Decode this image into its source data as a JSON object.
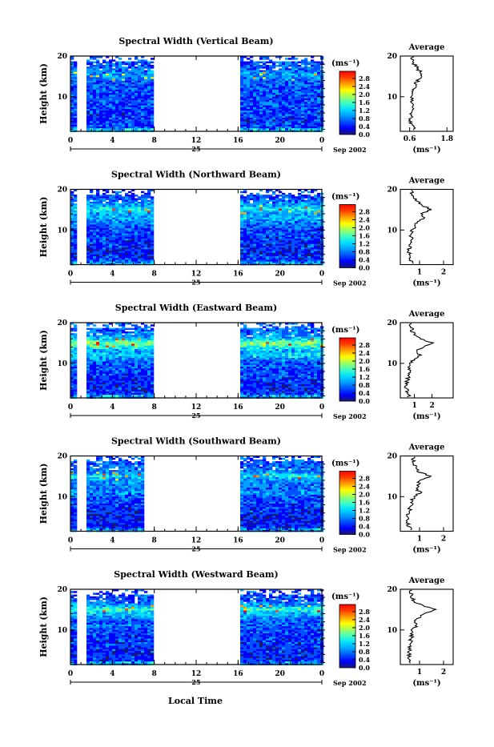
{
  "figure": {
    "xlabel": "Local Time",
    "date_left": "25",
    "date_right": "Sep 2002",
    "cbar_unit": "(ms⁻¹)",
    "profile_title": "Average",
    "profile_xlabel": "(ms⁻¹)",
    "ylabel": "Height (km)"
  },
  "chart_data": [
    {
      "type": "heatmap",
      "title": "Spectral Width (Vertical Beam)",
      "ylabel": "Height (km)",
      "xlabel": "Local Time",
      "xlim": [
        0,
        24
      ],
      "ylim": [
        1.5,
        20
      ],
      "x_ticks": [
        "0",
        "4",
        "8",
        "12",
        "16",
        "20",
        "0"
      ],
      "y_ticks": [
        "10",
        "20"
      ],
      "data_gaps_hours": [
        [
          1.5,
          1.5
        ],
        [
          7.8,
          16.2
        ]
      ],
      "colorbar": {
        "unit": "(ms⁻¹)",
        "range": [
          0,
          3.0
        ],
        "ticks": [
          "0.0",
          "0.4",
          "0.8",
          "1.2",
          "1.6",
          "2.0",
          "2.4",
          "2.8"
        ]
      },
      "average_profile": {
        "title": "Average",
        "xlabel": "(ms⁻¹)",
        "x_ticks": [
          "0.6",
          "1.8"
        ],
        "xlim": [
          0.3,
          2.0
        ],
        "height_km": [
          2,
          4,
          6,
          8,
          10,
          12,
          14,
          15,
          16,
          17,
          18,
          19.5
        ],
        "width_ms": [
          0.75,
          0.62,
          0.65,
          0.7,
          0.65,
          0.75,
          0.85,
          1.05,
          0.95,
          0.85,
          0.75,
          0.7
        ]
      }
    },
    {
      "type": "heatmap",
      "title": "Spectral Width (Northward Beam)",
      "ylabel": "Height (km)",
      "xlabel": "Local Time",
      "xlim": [
        0,
        24
      ],
      "ylim": [
        1.5,
        20
      ],
      "x_ticks": [
        "0",
        "4",
        "8",
        "12",
        "16",
        "20",
        "0"
      ],
      "y_ticks": [
        "10",
        "20"
      ],
      "data_gaps_hours": [
        [
          1.5,
          1.5
        ],
        [
          7.8,
          16.2
        ]
      ],
      "colorbar": {
        "unit": "(ms⁻¹)",
        "range": [
          0,
          3.0
        ],
        "ticks": [
          "0.0",
          "0.4",
          "0.8",
          "1.2",
          "1.6",
          "2.0",
          "2.4",
          "2.8"
        ]
      },
      "average_profile": {
        "title": "Average",
        "xlabel": "(ms⁻¹)",
        "x_ticks": [
          "1",
          "2"
        ],
        "xlim": [
          0.2,
          2.4
        ],
        "height_km": [
          2,
          4,
          6,
          8,
          10,
          12,
          13,
          14,
          15,
          16,
          17,
          18,
          19.5
        ],
        "width_ms": [
          0.7,
          0.55,
          0.6,
          0.65,
          0.7,
          0.95,
          1.25,
          1.05,
          1.5,
          1.15,
          0.9,
          0.75,
          0.65
        ]
      }
    },
    {
      "type": "heatmap",
      "title": "Spectral Width (Eastward Beam)",
      "ylabel": "Height (km)",
      "xlabel": "Local Time",
      "xlim": [
        0,
        24
      ],
      "ylim": [
        1.5,
        20
      ],
      "x_ticks": [
        "0",
        "4",
        "8",
        "12",
        "16",
        "20",
        "0"
      ],
      "y_ticks": [
        "10",
        "20"
      ],
      "data_gaps_hours": [
        [
          1.5,
          1.5
        ],
        [
          7.8,
          16.2
        ]
      ],
      "colorbar": {
        "unit": "(ms⁻¹)",
        "range": [
          0,
          3.0
        ],
        "ticks": [
          "0.0",
          "0.4",
          "0.8",
          "1.2",
          "1.6",
          "2.0",
          "2.4",
          "2.8"
        ]
      },
      "average_profile": {
        "title": "Average",
        "xlabel": "(ms⁻¹)",
        "x_ticks": [
          "1",
          "2"
        ],
        "xlim": [
          0.2,
          3.2
        ],
        "height_km": [
          2,
          4,
          6,
          8,
          10,
          11,
          12,
          13,
          14,
          15,
          16,
          17,
          18,
          19.5
        ],
        "width_ms": [
          0.7,
          0.55,
          0.6,
          0.7,
          0.8,
          1.0,
          1.35,
          1.1,
          1.6,
          2.0,
          1.3,
          1.0,
          0.85,
          0.8
        ]
      }
    },
    {
      "type": "heatmap",
      "title": "Spectral Width (Southward Beam)",
      "ylabel": "Height (km)",
      "xlabel": "Local Time",
      "xlim": [
        0,
        24
      ],
      "ylim": [
        1.5,
        20
      ],
      "x_ticks": [
        "0",
        "4",
        "8",
        "12",
        "16",
        "20",
        "0"
      ],
      "y_ticks": [
        "10",
        "20"
      ],
      "data_gaps_hours": [
        [
          1.5,
          1.5
        ],
        [
          7.0,
          16.2
        ]
      ],
      "colorbar": {
        "unit": "(ms⁻¹)",
        "range": [
          0,
          3.0
        ],
        "ticks": [
          "0.0",
          "0.4",
          "0.8",
          "1.2",
          "1.6",
          "2.0",
          "2.4",
          "2.8"
        ]
      },
      "average_profile": {
        "title": "Average",
        "xlabel": "(ms⁻¹)",
        "x_ticks": [
          "1",
          "2"
        ],
        "xlim": [
          0.2,
          2.4
        ],
        "height_km": [
          2,
          4,
          6,
          8,
          10,
          11,
          12,
          13,
          14,
          15,
          16,
          17,
          18,
          19.5
        ],
        "width_ms": [
          0.6,
          0.5,
          0.55,
          0.65,
          0.75,
          1.05,
          0.85,
          0.95,
          1.0,
          1.45,
          1.0,
          0.9,
          0.8,
          0.75
        ]
      }
    },
    {
      "type": "heatmap",
      "title": "Spectral Width (Westward Beam)",
      "ylabel": "Height (km)",
      "xlabel": "Local Time",
      "xlim": [
        0,
        24
      ],
      "ylim": [
        1.5,
        20
      ],
      "x_ticks": [
        "0",
        "4",
        "8",
        "12",
        "16",
        "20",
        "0"
      ],
      "y_ticks": [
        "10",
        "20"
      ],
      "data_gaps_hours": [
        [
          1.5,
          1.5
        ],
        [
          7.8,
          16.2
        ]
      ],
      "colorbar": {
        "unit": "(ms⁻¹)",
        "range": [
          0,
          3.0
        ],
        "ticks": [
          "0.0",
          "0.4",
          "0.8",
          "1.2",
          "1.6",
          "2.0",
          "2.4",
          "2.8"
        ]
      },
      "average_profile": {
        "title": "Average",
        "xlabel": "(ms⁻¹)",
        "x_ticks": [
          "1",
          "2"
        ],
        "xlim": [
          0.2,
          2.4
        ],
        "height_km": [
          2,
          4,
          6,
          8,
          10,
          11,
          12,
          13,
          14,
          15,
          16,
          17,
          18,
          19.5
        ],
        "width_ms": [
          0.6,
          0.55,
          0.6,
          0.65,
          0.7,
          0.9,
          0.75,
          1.0,
          1.2,
          1.7,
          1.1,
          0.8,
          0.7,
          0.65
        ]
      }
    }
  ],
  "colors": {
    "colormap": [
      "#1a1a6e",
      "#0000ff",
      "#0050ff",
      "#00a0ff",
      "#00e0ff",
      "#40ffc0",
      "#a0ff60",
      "#ffff00",
      "#ffa000",
      "#ff4000",
      "#ff0000"
    ],
    "axis": "#000000",
    "background": "#ffffff"
  }
}
